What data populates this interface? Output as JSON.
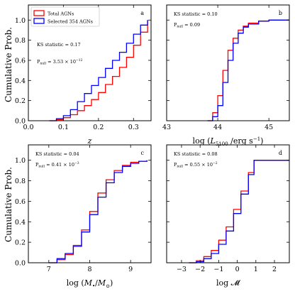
{
  "figure": {
    "ylabel_top": "Cumulative Prob.",
    "ylabel_bottom": "Cumulative Prob."
  },
  "legend": {
    "entries": [
      {
        "label": "Total AGNs",
        "color": "#ff0000"
      },
      {
        "label": "Selected 354 AGNs",
        "color": "#0000ff"
      }
    ]
  },
  "colors": {
    "total": "#ff0000",
    "selected": "#0000ff"
  },
  "chart_data": [
    {
      "type": "line",
      "panel": "a",
      "xlabel": "z",
      "ylabel": "Cumulative Prob.",
      "xlim": [
        0.0,
        0.35
      ],
      "ylim": [
        0.0,
        1.15
      ],
      "xticks": [
        "0.0",
        "0.1",
        "0.2",
        "0.3"
      ],
      "xtick_values": [
        0.0,
        0.1,
        0.2,
        0.3
      ],
      "yticks": [
        "0.0",
        "0.2",
        "0.4",
        "0.6",
        "0.8",
        "1.0"
      ],
      "ytick_values": [
        0.0,
        0.2,
        0.4,
        0.6,
        0.8,
        1.0
      ],
      "stats": [
        "KS statistic = 0.17",
        "Pnull = 3.53 × 10^-12"
      ],
      "series": [
        {
          "name": "Total AGNs",
          "color": "#ff0000",
          "x": [
            0.06,
            0.08,
            0.1,
            0.12,
            0.14,
            0.16,
            0.18,
            0.2,
            0.22,
            0.24,
            0.26,
            0.28,
            0.3,
            0.32,
            0.34
          ],
          "y": [
            0.0,
            0.01,
            0.03,
            0.06,
            0.1,
            0.15,
            0.21,
            0.28,
            0.36,
            0.44,
            0.53,
            0.63,
            0.75,
            0.88,
            1.0
          ]
        },
        {
          "name": "Selected 354 AGNs",
          "color": "#0000ff",
          "x": [
            0.06,
            0.08,
            0.1,
            0.12,
            0.14,
            0.16,
            0.18,
            0.2,
            0.22,
            0.24,
            0.26,
            0.28,
            0.3,
            0.32,
            0.34
          ],
          "y": [
            0.0,
            0.02,
            0.05,
            0.11,
            0.19,
            0.27,
            0.35,
            0.43,
            0.52,
            0.6,
            0.68,
            0.77,
            0.86,
            0.95,
            1.0
          ]
        }
      ]
    },
    {
      "type": "line",
      "panel": "b",
      "xlabel": "log (L5100 /erg s^-1)",
      "ylabel": "",
      "xlim": [
        43.0,
        45.4
      ],
      "ylim": [
        0.0,
        1.15
      ],
      "xticks": [
        "43",
        "44",
        "45"
      ],
      "xtick_values": [
        43,
        44,
        45
      ],
      "yticks": [
        "0.0",
        "0.2",
        "0.4",
        "0.6",
        "0.8",
        "1.0"
      ],
      "ytick_values": [
        0.0,
        0.2,
        0.4,
        0.6,
        0.8,
        1.0
      ],
      "stats": [
        "KS statistic = 0.10",
        "Pnull = 0.09"
      ],
      "series": [
        {
          "name": "Total AGNs",
          "color": "#ff0000",
          "x": [
            43.8,
            43.9,
            44.0,
            44.1,
            44.2,
            44.3,
            44.4,
            44.5,
            44.6,
            44.8,
            45.0,
            45.2,
            45.4
          ],
          "y": [
            0.0,
            0.08,
            0.25,
            0.5,
            0.7,
            0.82,
            0.9,
            0.94,
            0.97,
            0.99,
            1.0,
            1.0,
            1.0
          ]
        },
        {
          "name": "Selected 354 AGNs",
          "color": "#0000ff",
          "x": [
            43.8,
            43.9,
            44.0,
            44.1,
            44.2,
            44.3,
            44.4,
            44.5,
            44.6,
            44.8,
            45.0,
            45.2,
            45.4
          ],
          "y": [
            0.0,
            0.04,
            0.15,
            0.38,
            0.6,
            0.77,
            0.87,
            0.93,
            0.96,
            0.99,
            1.0,
            1.0,
            1.0
          ]
        }
      ]
    },
    {
      "type": "line",
      "panel": "c",
      "xlabel": "log (M•/M⊙)",
      "ylabel": "Cumulative Prob.",
      "xlim": [
        6.5,
        9.5
      ],
      "ylim": [
        0.0,
        1.15
      ],
      "xticks": [
        "7",
        "8",
        "9"
      ],
      "xtick_values": [
        7,
        8,
        9
      ],
      "yticks": [
        "0.0",
        "0.2",
        "0.4",
        "0.6",
        "0.8",
        "1.0"
      ],
      "ytick_values": [
        0.0,
        0.2,
        0.4,
        0.6,
        0.8,
        1.0
      ],
      "stats": [
        "KS statistic = 0.04",
        "Pnull = 0.41 × 10^-3"
      ],
      "series": [
        {
          "name": "Total AGNs",
          "color": "#ff0000",
          "x": [
            7.0,
            7.2,
            7.4,
            7.6,
            7.8,
            8.0,
            8.2,
            8.4,
            8.6,
            8.8,
            9.0,
            9.2,
            9.4
          ],
          "y": [
            0.0,
            0.03,
            0.08,
            0.17,
            0.32,
            0.5,
            0.68,
            0.81,
            0.9,
            0.95,
            0.98,
            0.99,
            1.0
          ]
        },
        {
          "name": "Selected 354 AGNs",
          "color": "#0000ff",
          "x": [
            7.0,
            7.2,
            7.4,
            7.6,
            7.8,
            8.0,
            8.2,
            8.4,
            8.6,
            8.8,
            9.0,
            9.2,
            9.4
          ],
          "y": [
            0.0,
            0.04,
            0.09,
            0.16,
            0.3,
            0.47,
            0.64,
            0.78,
            0.88,
            0.94,
            0.97,
            0.99,
            1.0
          ]
        }
      ]
    },
    {
      "type": "line",
      "panel": "d",
      "xlabel": "log 𝓜̇",
      "ylabel": "",
      "xlim": [
        -3.8,
        2.8
      ],
      "ylim": [
        0.0,
        1.15
      ],
      "xticks": [
        "−3",
        "−2",
        "−1",
        "0",
        "1",
        "2"
      ],
      "xtick_values": [
        -3,
        -2,
        -1,
        0,
        1,
        2
      ],
      "yticks": [
        "0.0",
        "0.2",
        "0.4",
        "0.6",
        "0.8",
        "1.0"
      ],
      "ytick_values": [
        0.0,
        0.2,
        0.4,
        0.6,
        0.8,
        1.0
      ],
      "stats": [
        "KS statistic = 0.08",
        "Pnull = 0.55 × 10^-2"
      ],
      "series": [
        {
          "name": "Total AGNs",
          "color": "#ff0000",
          "x": [
            -2.6,
            -2.2,
            -1.8,
            -1.4,
            -1.0,
            -0.6,
            -0.2,
            0.2,
            0.6,
            0.9,
            1.2,
            2.0,
            2.8
          ],
          "y": [
            0.0,
            0.02,
            0.06,
            0.12,
            0.22,
            0.35,
            0.52,
            0.7,
            0.88,
            1.0,
            1.0,
            1.0,
            1.0
          ]
        },
        {
          "name": "Selected 354 AGNs",
          "color": "#0000ff",
          "x": [
            -2.6,
            -2.2,
            -1.8,
            -1.4,
            -1.0,
            -0.6,
            -0.2,
            0.2,
            0.6,
            0.9,
            1.2,
            2.0,
            2.8
          ],
          "y": [
            0.0,
            0.01,
            0.04,
            0.09,
            0.18,
            0.31,
            0.48,
            0.67,
            0.86,
            1.0,
            1.0,
            1.0,
            1.0
          ]
        }
      ]
    }
  ]
}
